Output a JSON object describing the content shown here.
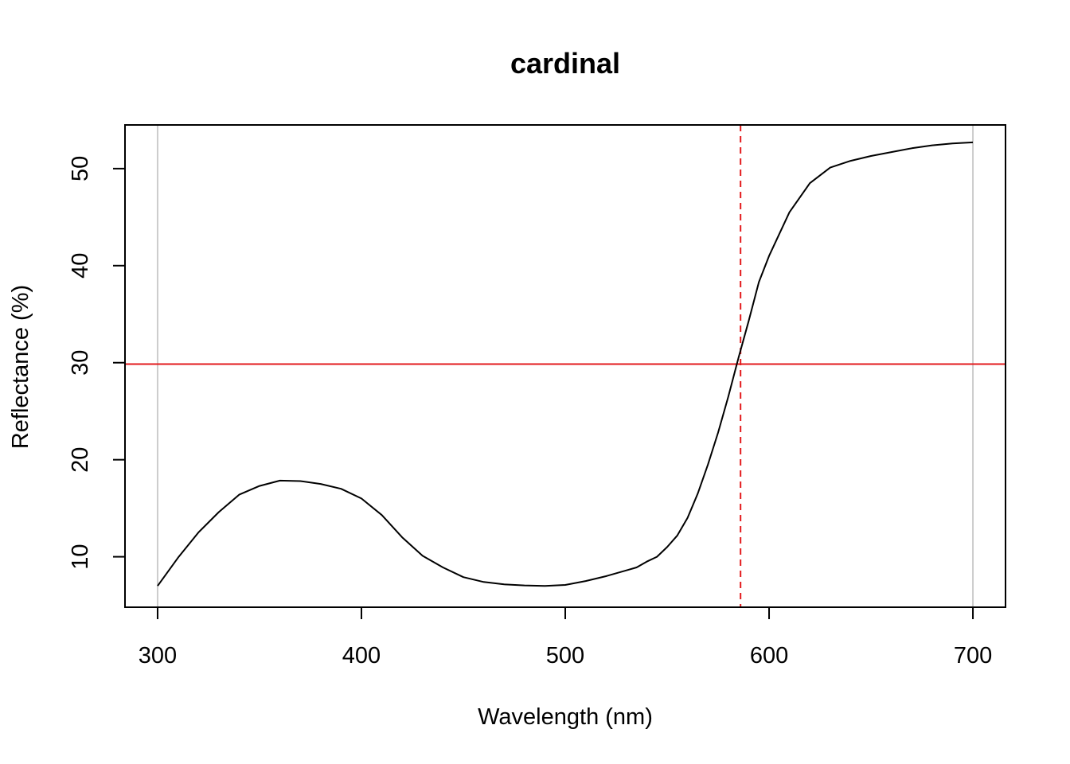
{
  "chart_data": {
    "type": "line",
    "title": "cardinal",
    "xlabel": "Wavelength (nm)",
    "ylabel": "Reflectance (%)",
    "xlim": [
      284,
      716
    ],
    "ylim": [
      4.8,
      54.5
    ],
    "x_ticks": [
      300,
      400,
      500,
      600,
      700
    ],
    "x_tick_labels": [
      "300",
      "400",
      "500",
      "600",
      "700"
    ],
    "y_ticks": [
      10,
      20,
      30,
      40,
      50
    ],
    "y_tick_labels": [
      "10",
      "20",
      "30",
      "40",
      "50"
    ],
    "grid": false,
    "series": [
      {
        "color": "#000000",
        "x": [
          300,
          310,
          320,
          330,
          340,
          350,
          360,
          370,
          380,
          390,
          400,
          410,
          420,
          430,
          440,
          450,
          460,
          470,
          480,
          490,
          500,
          510,
          520,
          530,
          535,
          540,
          545,
          550,
          555,
          560,
          565,
          570,
          575,
          580,
          585,
          590,
          595,
          600,
          610,
          620,
          630,
          640,
          650,
          660,
          670,
          680,
          690,
          700
        ],
        "y": [
          7.0,
          9.9,
          12.5,
          14.6,
          16.4,
          17.3,
          17.85,
          17.8,
          17.5,
          17.0,
          16.0,
          14.3,
          12.0,
          10.1,
          8.9,
          7.9,
          7.4,
          7.15,
          7.05,
          7.0,
          7.1,
          7.5,
          8.0,
          8.6,
          8.9,
          9.5,
          10.0,
          11.0,
          12.2,
          14.0,
          16.5,
          19.5,
          22.8,
          26.5,
          30.5,
          34.3,
          38.3,
          41.0,
          45.5,
          48.5,
          50.1,
          50.8,
          51.3,
          51.7,
          52.1,
          52.4,
          52.6,
          52.7
        ]
      }
    ],
    "reference_lines": {
      "gray_verticals_x": [
        300,
        700
      ],
      "gray_color": "#cccccc",
      "red_horizontal_y": 29.85,
      "red_vertical_dashed_x": 586,
      "red_color": "#e31a1c"
    }
  }
}
